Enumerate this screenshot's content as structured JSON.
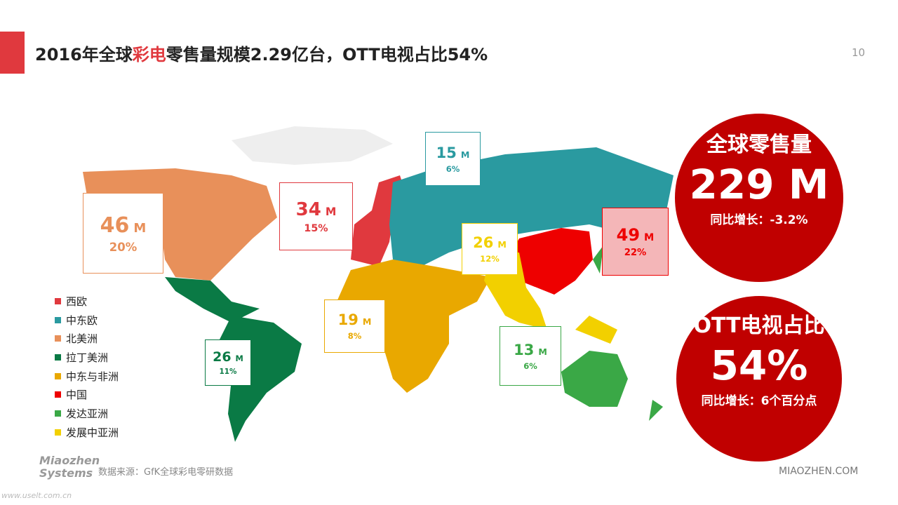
{
  "header": {
    "title_parts": [
      "2016年全球",
      "彩电",
      "零售量规模2.29亿台，OTT电视占比54%"
    ],
    "page_number": "10"
  },
  "regions": [
    {
      "name": "西欧",
      "color": "#e0393e",
      "value": 34,
      "unit": "M",
      "share": "15%"
    },
    {
      "name": "中东欧",
      "color": "#2a9aa0",
      "value": 15,
      "unit": "M",
      "share": "6%"
    },
    {
      "name": "北美洲",
      "color": "#e8905a",
      "value": 46,
      "unit": "M",
      "share": "20%"
    },
    {
      "name": "拉丁美洲",
      "color": "#0a7a45",
      "value": 26,
      "unit": "M",
      "share": "11%"
    },
    {
      "name": "中东与非洲",
      "color": "#e9a800",
      "value": 19,
      "unit": "M",
      "share": "8%"
    },
    {
      "name": "中国",
      "color": "#ee0000",
      "value": 49,
      "unit": "M",
      "share": "22%"
    },
    {
      "name": "发达亚洲",
      "color": "#3aa846",
      "value": 13,
      "unit": "M",
      "share": "6%"
    },
    {
      "name": "发展中亚洲",
      "color": "#f2d000",
      "value": 26,
      "unit": "M",
      "share": "12%"
    }
  ],
  "circles": [
    {
      "title": "全球零售量",
      "big": "229 M",
      "note": "同比增长：-3.2%"
    },
    {
      "title": "OTT电视占比",
      "big": "54%",
      "note": "同比增长：6个百分点"
    }
  ],
  "footer": {
    "source": "数据来源：GfK全球彩电零研数据",
    "logo_line1": "Miaozhen",
    "logo_line2": "Systems",
    "site": "MIAOZHEN.COM",
    "watermark": "www.uselt.com.cn"
  }
}
